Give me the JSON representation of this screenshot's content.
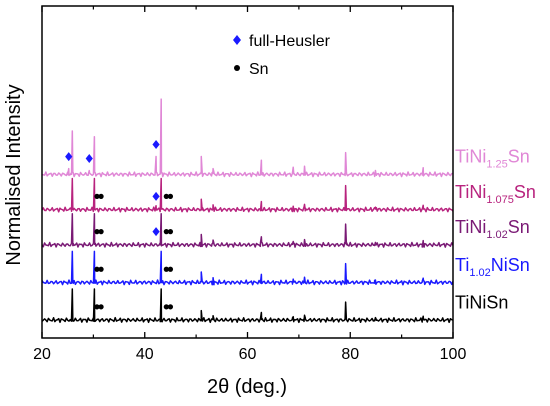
{
  "chart_data": {
    "type": "line",
    "xlabel": "2θ (deg.)",
    "ylabel": "Normalised Intensity",
    "xlim": [
      20,
      100
    ],
    "x_ticks": [
      "20",
      "40",
      "60",
      "80",
      "100"
    ],
    "legend": {
      "position": "top-center",
      "entries": [
        {
          "marker": "diamond",
          "color": "#1a1aff",
          "label": "full-Heusler"
        },
        {
          "marker": "dot",
          "color": "#000000",
          "label": "Sn"
        }
      ]
    },
    "series": [
      {
        "name": "TiNiSn",
        "label_parts": [
          {
            "t": "TiNiSn",
            "sub": false
          }
        ],
        "color": "#000000",
        "baseline": 0,
        "peaks": [
          [
            25.9,
            0.66
          ],
          [
            30.2,
            0.66
          ],
          [
            43.2,
            0.66
          ],
          [
            51.0,
            0.2
          ],
          [
            53.3,
            0.09
          ],
          [
            62.7,
            0.16
          ],
          [
            68.9,
            0.07
          ],
          [
            71.1,
            0.1
          ],
          [
            79.1,
            0.38
          ],
          [
            84.9,
            0.05
          ],
          [
            94.2,
            0.08
          ]
        ],
        "sn_markers": [
          [
            30.7,
            31.5
          ],
          [
            44.2,
            45.0
          ]
        ],
        "fh_markers": []
      },
      {
        "name": "Ti1.02NiSn",
        "label_parts": [
          {
            "t": "Ti",
            "sub": false
          },
          {
            "t": "1.02",
            "sub": true
          },
          {
            "t": "NiSn",
            "sub": false
          }
        ],
        "color": "#1a1aff",
        "baseline": 0.8,
        "peaks": [
          [
            25.9,
            0.66
          ],
          [
            30.2,
            0.66
          ],
          [
            43.2,
            0.66
          ],
          [
            51.0,
            0.22
          ],
          [
            53.3,
            0.1
          ],
          [
            62.7,
            0.17
          ],
          [
            68.9,
            0.07
          ],
          [
            71.1,
            0.11
          ],
          [
            79.1,
            0.4
          ],
          [
            84.9,
            0.05
          ],
          [
            94.2,
            0.09
          ]
        ],
        "sn_markers": [
          [
            30.7,
            31.5
          ],
          [
            44.2,
            45.0
          ]
        ],
        "fh_markers": []
      },
      {
        "name": "TiNi1.02Sn",
        "label_parts": [
          {
            "t": "TiNi",
            "sub": false
          },
          {
            "t": "1.02",
            "sub": true
          },
          {
            "t": "Sn",
            "sub": false
          }
        ],
        "color": "#7a1a75",
        "baseline": 1.6,
        "peaks": [
          [
            25.9,
            0.66
          ],
          [
            30.2,
            0.66
          ],
          [
            43.2,
            0.66
          ],
          [
            51.0,
            0.22
          ],
          [
            53.3,
            0.1
          ],
          [
            62.7,
            0.17
          ],
          [
            68.9,
            0.07
          ],
          [
            71.1,
            0.11
          ],
          [
            79.1,
            0.44
          ],
          [
            84.9,
            0.05
          ],
          [
            94.2,
            0.09
          ]
        ],
        "sn_markers": [
          [
            30.7,
            31.5
          ],
          [
            44.2,
            45.0
          ]
        ],
        "fh_markers": [
          42.2
        ]
      },
      {
        "name": "TiNi1.075Sn",
        "label_parts": [
          {
            "t": "TiNi",
            "sub": false
          },
          {
            "t": "1.075",
            "sub": true
          },
          {
            "t": "Sn",
            "sub": false
          }
        ],
        "color": "#b8237e",
        "baseline": 2.35,
        "peaks": [
          [
            25.9,
            0.66
          ],
          [
            30.2,
            0.66
          ],
          [
            42.2,
            0.08
          ],
          [
            43.2,
            0.66
          ],
          [
            51.0,
            0.22
          ],
          [
            53.3,
            0.1
          ],
          [
            62.7,
            0.17
          ],
          [
            68.9,
            0.07
          ],
          [
            71.1,
            0.11
          ],
          [
            79.1,
            0.51
          ],
          [
            84.9,
            0.05
          ],
          [
            94.2,
            0.09
          ]
        ],
        "sn_markers": [
          [
            30.7,
            31.5
          ],
          [
            44.2,
            45.0
          ]
        ],
        "fh_markers": [
          42.2
        ]
      },
      {
        "name": "TiNi1.25Sn",
        "label_parts": [
          {
            "t": "TiNi",
            "sub": false
          },
          {
            "t": "1.25",
            "sub": true
          },
          {
            "t": "Sn",
            "sub": false
          }
        ],
        "color": "#e087d6",
        "baseline": 3.1,
        "peaks": [
          [
            25.2,
            0.12
          ],
          [
            25.9,
            0.92
          ],
          [
            29.2,
            0.08
          ],
          [
            30.2,
            0.8
          ],
          [
            42.2,
            0.38
          ],
          [
            43.2,
            1.6
          ],
          [
            51.0,
            0.38
          ],
          [
            53.3,
            0.12
          ],
          [
            62.7,
            0.3
          ],
          [
            68.9,
            0.15
          ],
          [
            71.1,
            0.17
          ],
          [
            79.1,
            0.46
          ],
          [
            84.9,
            0.08
          ],
          [
            94.2,
            0.14
          ]
        ],
        "sn_markers": [],
        "fh_markers": [
          25.2,
          29.2,
          42.2
        ]
      }
    ]
  }
}
